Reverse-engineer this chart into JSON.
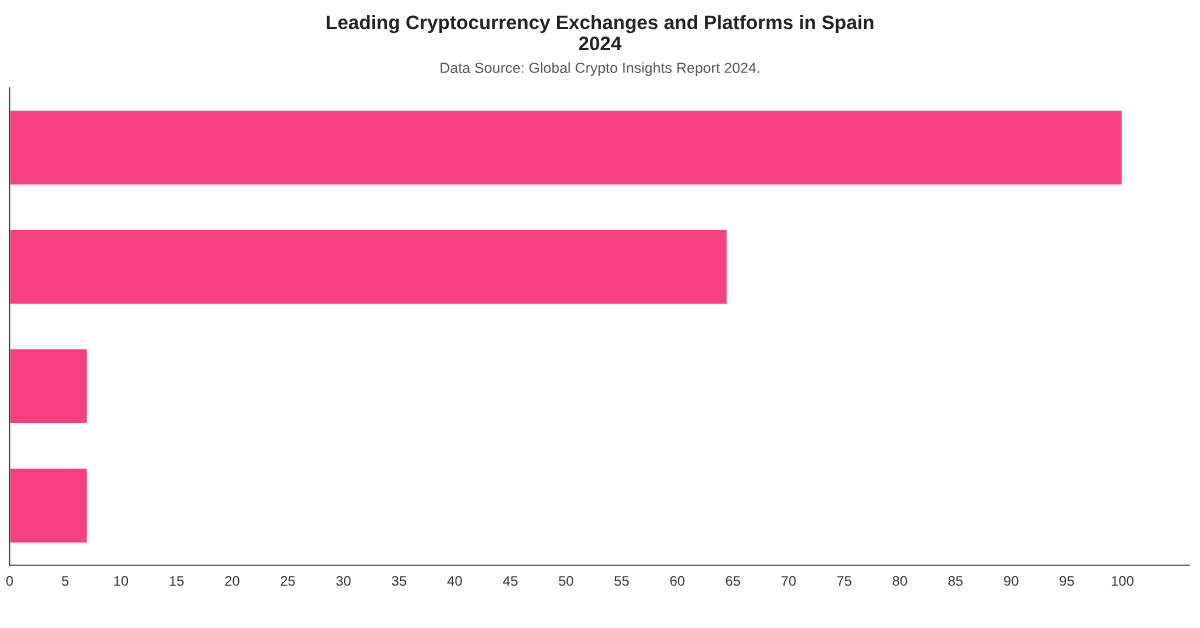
{
  "chart_data": {
    "type": "bar",
    "orientation": "horizontal",
    "title": "Leading Cryptocurrency Exchanges and Platforms in Spain\n2024",
    "subtitle": "Data Source: Global Crypto Insights Report 2024.",
    "categories": [
      null,
      null,
      null,
      null
    ],
    "values": [
      100,
      64.5,
      7,
      7
    ],
    "color": "#f7407f",
    "xlim": [
      0,
      106
    ],
    "xticks": [
      0,
      5,
      10,
      15,
      20,
      25,
      30,
      35,
      40,
      45,
      50,
      55,
      60,
      65,
      70,
      75,
      80,
      85,
      90,
      95,
      100
    ],
    "grid": false,
    "tick_labels": "x"
  }
}
